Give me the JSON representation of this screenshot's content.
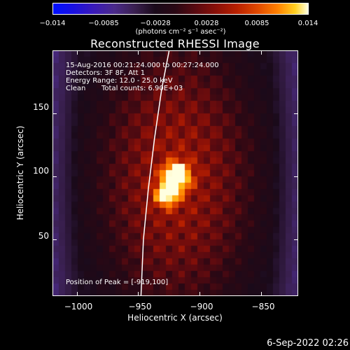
{
  "colorbar": {
    "ticks": [
      "−0.014",
      "−0.0085",
      "−0.0028",
      "0.0028",
      "0.0085",
      "0.014"
    ],
    "unit": "(photons cm⁻² s⁻¹ asec⁻²)"
  },
  "chart_data": {
    "type": "heatmap",
    "title": "Reconstructed RHESSI Image",
    "xlabel": "Heliocentric X (arcsec)",
    "ylabel": "Heliocentric Y (arcsec)",
    "xlim": [
      -1020,
      -820
    ],
    "ylim": [
      5,
      200
    ],
    "xticks": [
      "−1000",
      "−950",
      "−900",
      "−850"
    ],
    "xtick_values": [
      -1000,
      -950,
      -900,
      -850
    ],
    "yticks": [
      "150",
      "100",
      "50"
    ],
    "ytick_values": [
      150,
      100,
      50
    ],
    "colorscale_range": [
      -0.014,
      0.014
    ],
    "peak": {
      "x": -919,
      "y": 100
    },
    "limb_curve": [
      {
        "x": -948,
        "y": 5
      },
      {
        "x": -946,
        "y": 50
      },
      {
        "x": -942,
        "y": 90
      },
      {
        "x": -937,
        "y": 130
      },
      {
        "x": -931,
        "y": 170
      },
      {
        "x": -925,
        "y": 200
      }
    ],
    "annotations": [
      "15-Aug-2016 00:21:24.000 to 00:27:24.000",
      "Detectors: 3F 8F, Att 1",
      "Energy Range: 12.0 - 25.0 keV",
      "Clean",
      "Total counts: 6.90E+03",
      "Position of Peak = [-919,100]"
    ]
  },
  "footer": {
    "date": "6-Sep-2022 02:26"
  }
}
